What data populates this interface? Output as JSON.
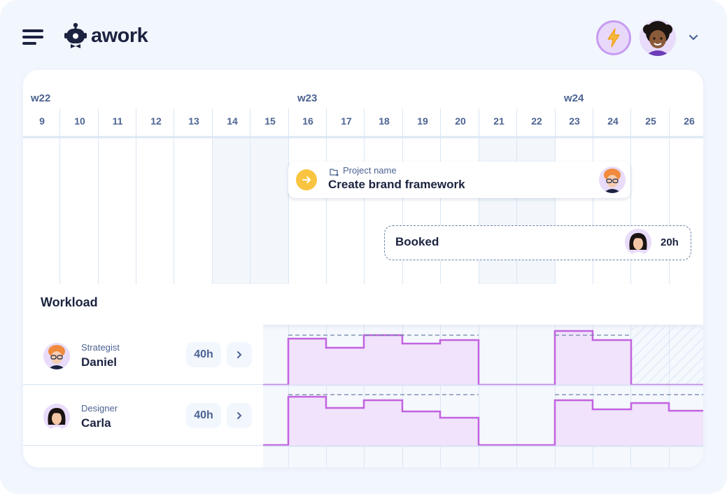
{
  "header": {
    "app_name": "awork",
    "menu_icon": "hamburger-menu-icon",
    "logo_icon": "awork-robot-logo-icon",
    "upgrade_icon": "lightning-bolt-icon",
    "account_icon": "chevron-down-icon"
  },
  "timeline": {
    "weeks": [
      "w22",
      "w23",
      "w24"
    ],
    "days": [
      "9",
      "10",
      "11",
      "12",
      "13",
      "14",
      "15",
      "16",
      "17",
      "18",
      "19",
      "20",
      "21",
      "22",
      "23",
      "24",
      "25",
      "26"
    ]
  },
  "task": {
    "project_label": "Project name",
    "title": "Create brand framework",
    "status_icon": "arrow-right-icon"
  },
  "booking": {
    "label": "Booked",
    "hours": "20h"
  },
  "workload": {
    "title": "Workload",
    "people": [
      {
        "role": "Strategist",
        "name": "Daniel",
        "hours": "40h"
      },
      {
        "role": "Designer",
        "name": "Carla",
        "hours": "40h"
      }
    ]
  },
  "colors": {
    "background": "#f2f6fd",
    "text": "#1b2340",
    "muted": "#4c6392",
    "accent_yellow": "#f9c440",
    "workload_line": "#c263e0",
    "workload_fill": "#f0e3fb"
  }
}
